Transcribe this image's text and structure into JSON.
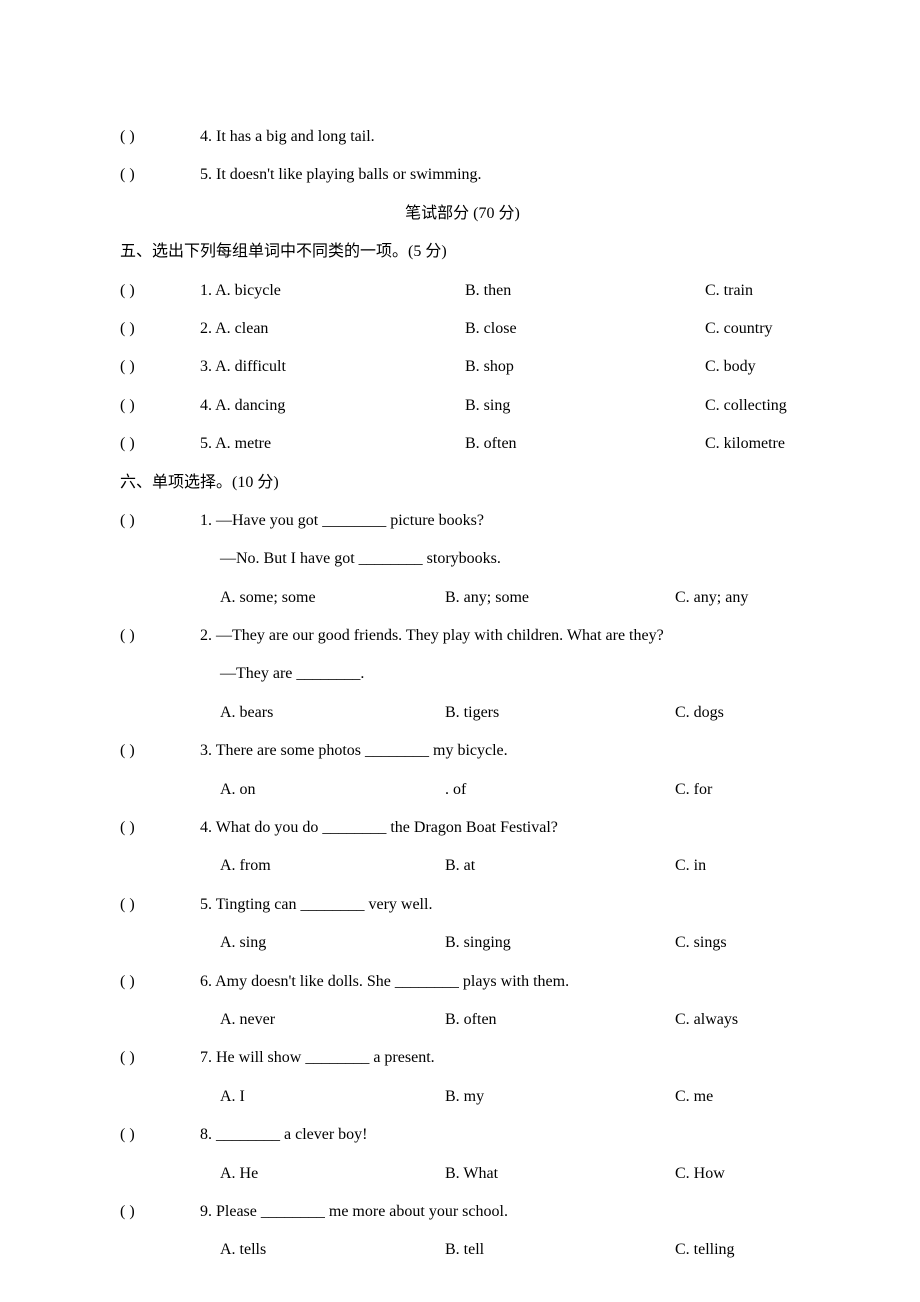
{
  "text_colors": {
    "primary": "#000000"
  },
  "background_color": "#ffffff",
  "font": {
    "latin": "Times New Roman",
    "cjk": "SimSun",
    "size_pt": 12
  },
  "tf_questions": [
    {
      "num": "4",
      "text": "It has a big and long tail."
    },
    {
      "num": "5",
      "text": "It doesn't like playing balls or swimming."
    }
  ],
  "section_title": "笔试部分 (70 分)",
  "section5": {
    "heading": "五、选出下列每组单词中不同类的一项。(5 分)",
    "items": [
      {
        "num": "1",
        "a": "A. bicycle",
        "b": "B. then",
        "c": "C. train"
      },
      {
        "num": "2",
        "a": "A. clean",
        "b": "B. close",
        "c": "C. country"
      },
      {
        "num": "3",
        "a": "A. difficult",
        "b": "B. shop",
        "c": "C. body"
      },
      {
        "num": "4",
        "a": "A. dancing",
        "b": "B. sing",
        "c": "C. collecting"
      },
      {
        "num": "5",
        "a": "A. metre",
        "b": "B. often",
        "c": "C. kilometre"
      }
    ]
  },
  "section6": {
    "heading": "六、单项选择。(10 分)",
    "items": [
      {
        "num": "1",
        "stem": "—Have you got ________ picture books?",
        "line2": "—No. But I have got ________ storybooks.",
        "a": "A. some; some",
        "b": "B. any; some",
        "c": "C. any; any"
      },
      {
        "num": "2",
        "stem": "—They are our good friends. They play with children. What are they?",
        "line2": "—They are ________.",
        "a": "A. bears",
        "b": "B. tigers",
        "c": "C. dogs"
      },
      {
        "num": "3",
        "stem": "There are some photos ________ my bicycle.",
        "a": "A. on",
        "b": ". of",
        "c": "C. for"
      },
      {
        "num": "4",
        "stem": "What do you do ________ the Dragon Boat Festival?",
        "a": "A. from",
        "b": "B. at",
        "c": "C. in"
      },
      {
        "num": "5",
        "stem": "Tingting can ________ very well.",
        "a": "A. sing",
        "b": "B. singing",
        "c": "C. sings"
      },
      {
        "num": "6",
        "stem": "Amy doesn't like dolls. She ________ plays with them.",
        "a": "A. never",
        "b": "B. often",
        "c": "C. always"
      },
      {
        "num": "7",
        "stem": "He will show ________ a present.",
        "a": "A. I",
        "b": "B. my",
        "c": "C. me"
      },
      {
        "num": "8",
        "stem": "________ a clever boy!",
        "a": "A. He",
        "b": "B. What",
        "c": "C. How"
      },
      {
        "num": "9",
        "stem": "Please ________ me more about your school.",
        "a": "A. tells",
        "b": "B. tell",
        "c": "C. telling"
      }
    ]
  },
  "bracket_open": "(",
  "bracket_close": ")"
}
